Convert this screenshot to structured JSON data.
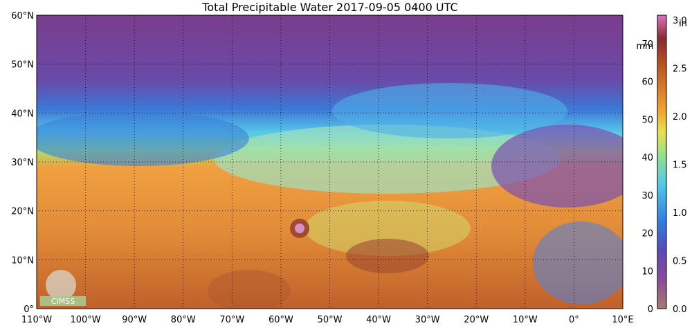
{
  "title": "Total Precipitable Water  2017-09-05 0400 UTC",
  "lat_labels": [
    "60°N",
    "50°N",
    "40°N",
    "30°N",
    "20°N",
    "10°N",
    "0°"
  ],
  "lon_labels": [
    "110°W",
    "100°W",
    "90°W",
    "80°W",
    "70°W",
    "60°W",
    "50°W",
    "40°W",
    "30°W",
    "20°W",
    "10°W",
    "0°",
    "10°E"
  ],
  "colorbar": {
    "mm_unit": "mm",
    "in_unit": "in",
    "mm_ticks": [
      "70",
      "60",
      "50",
      "40",
      "30",
      "20",
      "10",
      "0"
    ],
    "in_ticks": [
      "3.0",
      "2.5",
      "2.0",
      "1.5",
      "1.0",
      "0.5",
      "0.0"
    ]
  },
  "logo": "CIMSS"
}
